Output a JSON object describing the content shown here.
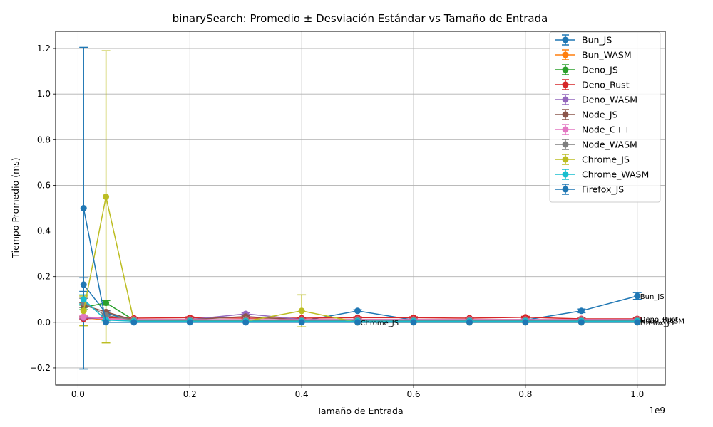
{
  "chart_data": {
    "type": "line",
    "title": "binarySearch: Promedio ± Desviación Estándar vs Tamaño de Entrada",
    "xlabel": "Tamaño de Entrada",
    "ylabel": "Tiempo Promedio (ms)",
    "x_offset_label": "1e9",
    "xlim": [
      -0.04,
      1.05
    ],
    "ylim": [
      -0.275,
      1.275
    ],
    "xticks": [
      0.0,
      0.2,
      0.4,
      0.6,
      0.8,
      1.0
    ],
    "xtick_labels": [
      "0.0",
      "0.2",
      "0.4",
      "0.6",
      "0.8",
      "1.0"
    ],
    "yticks": [
      -0.2,
      0.0,
      0.2,
      0.4,
      0.6,
      0.8,
      1.0,
      1.2
    ],
    "ytick_labels": [
      "−0.2",
      "0.0",
      "0.2",
      "0.4",
      "0.6",
      "0.8",
      "1.0",
      "1.2"
    ],
    "grid": true,
    "legend_position": "top-right",
    "x": [
      0.01,
      0.05,
      0.1,
      0.2,
      0.3,
      0.4,
      0.5,
      0.6,
      0.7,
      0.8,
      0.9,
      1.0
    ],
    "series": [
      {
        "name": "Bun_JS",
        "color": "#1f77b4",
        "values": [
          0.165,
          0.04,
          0.005,
          0.005,
          0.005,
          0.005,
          0.05,
          0.01,
          0.01,
          0.01,
          0.05,
          0.115
        ],
        "errors": [
          0.03,
          0.01,
          0.003,
          0.003,
          0.003,
          0.003,
          0.005,
          0.003,
          0.003,
          0.003,
          0.008,
          0.015
        ]
      },
      {
        "name": "Bun_WASM",
        "color": "#ff7f0e",
        "values": [
          0.02,
          0.01,
          0.01,
          0.01,
          0.01,
          0.01,
          0.01,
          0.01,
          0.01,
          0.01,
          0.01,
          0.01
        ],
        "errors": [
          0.005,
          0.003,
          0.003,
          0.003,
          0.003,
          0.003,
          0.003,
          0.003,
          0.003,
          0.003,
          0.003,
          0.003
        ]
      },
      {
        "name": "Deno_JS",
        "color": "#2ca02c",
        "values": [
          0.065,
          0.085,
          0.01,
          0.01,
          0.01,
          0.01,
          0.01,
          0.01,
          0.01,
          0.01,
          0.01,
          0.01
        ],
        "errors": [
          0.01,
          0.01,
          0.003,
          0.003,
          0.003,
          0.003,
          0.003,
          0.003,
          0.003,
          0.003,
          0.003,
          0.003
        ]
      },
      {
        "name": "Deno_Rust",
        "color": "#d62728",
        "values": [
          0.015,
          0.02,
          0.018,
          0.02,
          0.018,
          0.018,
          0.02,
          0.02,
          0.018,
          0.022,
          0.015,
          0.015
        ],
        "errors": [
          0.004,
          0.004,
          0.004,
          0.004,
          0.004,
          0.004,
          0.004,
          0.004,
          0.004,
          0.004,
          0.004,
          0.004
        ]
      },
      {
        "name": "Deno_WASM",
        "color": "#9467bd",
        "values": [
          0.02,
          0.015,
          0.012,
          0.012,
          0.037,
          0.012,
          0.012,
          0.012,
          0.012,
          0.012,
          0.012,
          0.012
        ],
        "errors": [
          0.004,
          0.003,
          0.003,
          0.003,
          0.005,
          0.003,
          0.003,
          0.003,
          0.003,
          0.003,
          0.003,
          0.003
        ]
      },
      {
        "name": "Node_JS",
        "color": "#8c564b",
        "values": [
          0.075,
          0.045,
          0.01,
          0.012,
          0.025,
          0.01,
          0.01,
          0.01,
          0.01,
          0.01,
          0.01,
          0.01
        ],
        "errors": [
          0.01,
          0.008,
          0.003,
          0.003,
          0.004,
          0.003,
          0.003,
          0.003,
          0.003,
          0.003,
          0.003,
          0.003
        ]
      },
      {
        "name": "Node_C++",
        "color": "#e377c2",
        "values": [
          0.025,
          0.015,
          0.012,
          0.012,
          0.012,
          0.012,
          0.012,
          0.012,
          0.012,
          0.012,
          0.012,
          0.012
        ],
        "errors": [
          0.005,
          0.003,
          0.003,
          0.003,
          0.003,
          0.003,
          0.003,
          0.003,
          0.003,
          0.003,
          0.003,
          0.003
        ]
      },
      {
        "name": "Node_WASM",
        "color": "#7f7f7f",
        "values": [
          0.085,
          0.03,
          0.01,
          0.01,
          0.01,
          0.01,
          0.01,
          0.01,
          0.01,
          0.01,
          0.01,
          0.01
        ],
        "errors": [
          0.02,
          0.006,
          0.003,
          0.003,
          0.003,
          0.003,
          0.003,
          0.003,
          0.003,
          0.003,
          0.003,
          0.003
        ]
      },
      {
        "name": "Chrome_JS",
        "color": "#bcbd22",
        "values": [
          0.05,
          0.55,
          0.005,
          0.005,
          0.005,
          0.05,
          0.0,
          0.0,
          0.0,
          0.0,
          0.0,
          0.0
        ],
        "errors": [
          0.065,
          0.64,
          0.003,
          0.003,
          0.003,
          0.07,
          0.0,
          0.0,
          0.0,
          0.0,
          0.0,
          0.0
        ]
      },
      {
        "name": "Chrome_WASM",
        "color": "#17becf",
        "values": [
          0.1,
          0.01,
          0.005,
          0.005,
          0.005,
          0.005,
          0.005,
          0.005,
          0.005,
          0.005,
          0.005,
          0.005
        ],
        "errors": [
          0.02,
          0.003,
          0.002,
          0.002,
          0.002,
          0.002,
          0.002,
          0.002,
          0.002,
          0.002,
          0.002,
          0.002
        ]
      },
      {
        "name": "Firefox_JS",
        "color": "#1f77b4",
        "values": [
          0.5,
          0.0,
          0.0,
          0.0,
          0.0,
          0.0,
          0.0,
          0.0,
          0.0,
          0.0,
          0.0,
          0.0
        ],
        "errors": [
          0.705,
          0.0,
          0.0,
          0.0,
          0.0,
          0.0,
          0.0,
          0.0,
          0.0,
          0.0,
          0.0,
          0.0
        ]
      }
    ],
    "annotations": [
      {
        "text": "Bun_JS",
        "x": 1.0,
        "y": 0.115
      },
      {
        "text": "Chrome_JS",
        "x": 0.5,
        "y": 0.0
      },
      {
        "text": "Deno_Rust",
        "x": 1.0,
        "y": 0.015
      },
      {
        "text": "Node_WASM",
        "x": 1.0,
        "y": 0.008
      },
      {
        "text": "Firefox_JS",
        "x": 1.0,
        "y": 0.0
      }
    ]
  }
}
